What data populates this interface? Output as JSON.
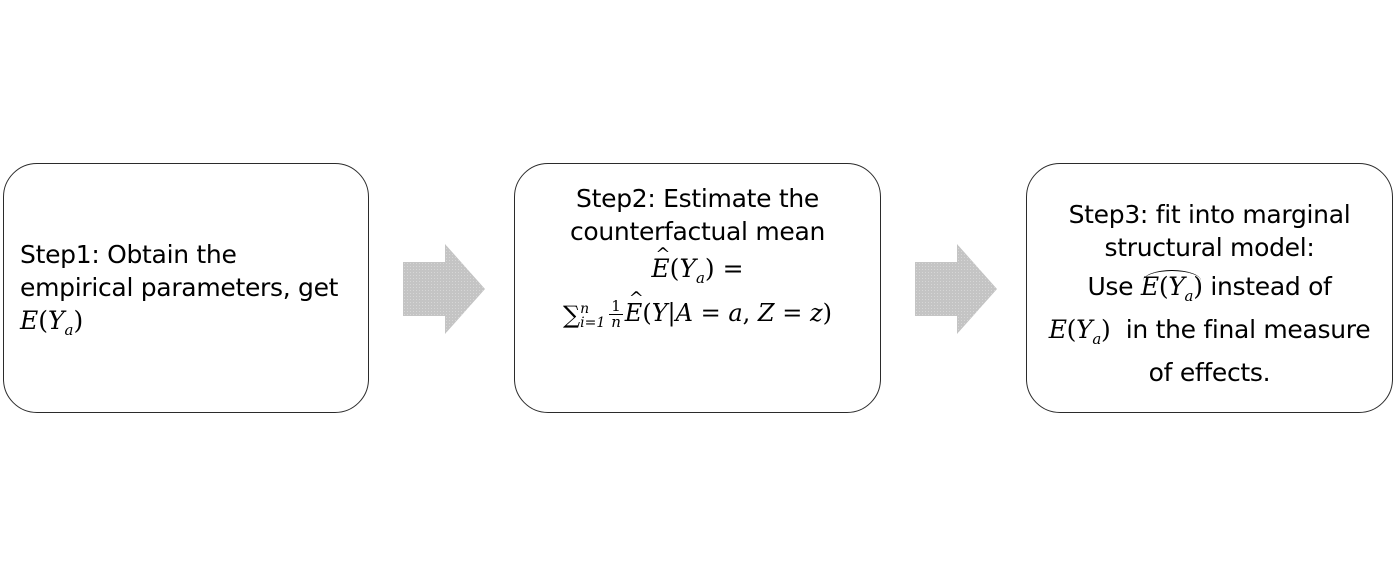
{
  "steps": [
    {
      "lines": [
        "Step1: Obtain the",
        "empirical parameters, get"
      ],
      "math": "E(Y_a)"
    },
    {
      "lines": [
        "Step2: Estimate the",
        "counterfactual mean"
      ],
      "math": [
        "Ê(Y_a) =",
        "∑_{i=1}^{n} (1/n) Ê(Y|A = a, Z = z)"
      ]
    },
    {
      "lines": [
        "Step3: fit into marginal",
        "structural model:"
      ],
      "body_prefix": "Use",
      "body_mid": "instead of",
      "body_after": "in the final measure",
      "body_end": "of effects."
    }
  ],
  "colors": {
    "border": "#2b2b2b",
    "arrow_fill": "#c4c4c4"
  }
}
